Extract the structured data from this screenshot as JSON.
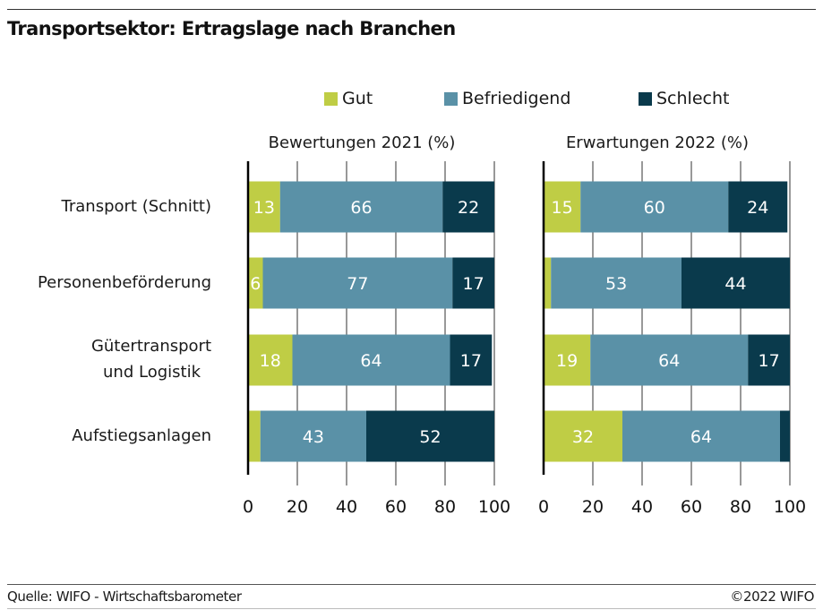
{
  "header": {
    "title": "Transportsektor: Ertragslage nach Branchen"
  },
  "footer": {
    "source": "Quelle: WIFO - Wirtschaftsbarometer",
    "copyright": "©2022 WIFO"
  },
  "colors": {
    "gut": "#bfcd45",
    "befriedigend": "#5a91a7",
    "schlecht": "#0a3a4c"
  },
  "chart_data": {
    "type": "bar",
    "orientation": "horizontal",
    "stacked": true,
    "title": "Transportsektor: Ertragslage nach Branchen",
    "legend": {
      "placement": "top",
      "entries": [
        "Gut",
        "Befriedigend",
        "Schlecht"
      ]
    },
    "categories": [
      "Transport (Schnitt)",
      "Personenbeförderung",
      "Gütertransport und Logistik",
      "Aufstiegsanlagen"
    ],
    "category_lines": [
      [
        "Transport (Schnitt)"
      ],
      [
        "Personenbeförderung"
      ],
      [
        "Gütertransport",
        "und Logistik"
      ],
      [
        "Aufstiegsanlagen"
      ]
    ],
    "xlim": [
      0,
      100
    ],
    "xticks": [
      "0",
      "20",
      "40",
      "60",
      "80",
      "100"
    ],
    "grid": true,
    "panels": [
      {
        "title": "Bewertungen 2021 (%)",
        "series": [
          {
            "name": "Gut",
            "values": [
              13,
              6,
              18,
              5
            ],
            "labels": [
              "13",
              "6",
              "18",
              ""
            ]
          },
          {
            "name": "Befriedigend",
            "values": [
              66,
              77,
              64,
              43
            ],
            "labels": [
              "66",
              "77",
              "64",
              "43"
            ]
          },
          {
            "name": "Schlecht",
            "values": [
              22,
              17,
              17,
              52
            ],
            "labels": [
              "22",
              "17",
              "17",
              "52"
            ]
          }
        ]
      },
      {
        "title": "Erwartungen 2022 (%)",
        "series": [
          {
            "name": "Gut",
            "values": [
              15,
              3,
              19,
              32
            ],
            "labels": [
              "15",
              "",
              "19",
              "32"
            ]
          },
          {
            "name": "Befriedigend",
            "values": [
              60,
              53,
              64,
              64
            ],
            "labels": [
              "60",
              "53",
              "64",
              "64"
            ]
          },
          {
            "name": "Schlecht",
            "values": [
              24,
              44,
              17,
              4
            ],
            "labels": [
              "24",
              "44",
              "17",
              ""
            ]
          }
        ]
      }
    ]
  }
}
